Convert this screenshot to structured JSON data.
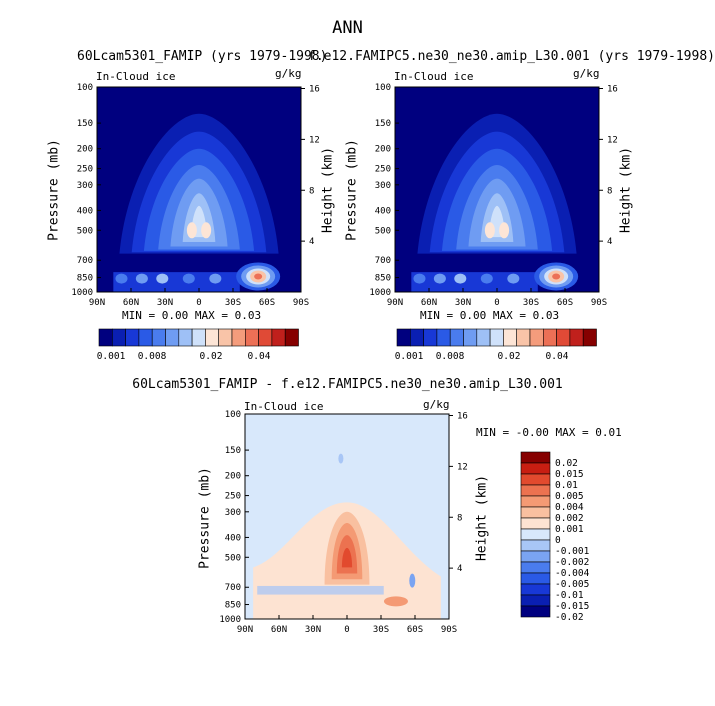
{
  "figure_title": "ANN",
  "panels": [
    {
      "title": "60Lcam5301_FAMIP (yrs 1979-1998)",
      "corner_left": "In-Cloud ice",
      "corner_right": "g/kg",
      "ylabel": "Pressure (mb)",
      "ylabel_right": "Height (km)",
      "minmax": "MIN =   0.00   MAX =   0.03"
    },
    {
      "title": "f.e12.FAMIPC5.ne30_ne30.amip_L30.001 (yrs 1979-1998)",
      "corner_left": "In-Cloud ice",
      "corner_right": "g/kg",
      "ylabel": "Pressure (mb)",
      "ylabel_right": "Height (km)",
      "minmax": "MIN =   0.00   MAX =   0.03"
    },
    {
      "title": "60Lcam5301_FAMIP - f.e12.FAMIPC5.ne30_ne30.amip_L30.001",
      "corner_left": "In-Cloud ice",
      "corner_right": "g/kg",
      "ylabel": "Pressure (mb)",
      "ylabel_right": "Height (km)",
      "minmax": "MIN =  -0.00   MAX =   0.01"
    }
  ],
  "colors": {
    "background_field": "#000080",
    "diff_background": "#d8e8fb",
    "colorbar_model": [
      "#00007f",
      "#0a1fb2",
      "#1838d6",
      "#2a5ae6",
      "#4a7cee",
      "#6f9cf2",
      "#9ec0f6",
      "#cfe1fa",
      "#fde5d6",
      "#f9c4a8",
      "#f49c7c",
      "#ec7056",
      "#e04a36",
      "#c0201c",
      "#860000"
    ],
    "colorbar_diff": [
      "#00007f",
      "#0a1fb2",
      "#1838d6",
      "#2a5ae6",
      "#4a7cee",
      "#7aa4f2",
      "#a8c6f6",
      "#d8e8fb",
      "#fde3d2",
      "#f9c0a0",
      "#f49a74",
      "#ec7250",
      "#e24a2e",
      "#c81e12",
      "#860000"
    ]
  },
  "chart_data": [
    {
      "type": "heatmap",
      "title": "60Lcam5301_FAMIP (yrs 1979-1998)",
      "variable": "In-Cloud ice",
      "units": "g/kg",
      "xlabel": "",
      "ylabel": "Pressure (mb)",
      "ylabel_right": "Height (km)",
      "x_ticks": [
        "90N",
        "60N",
        "30N",
        "0",
        "30S",
        "60S",
        "90S"
      ],
      "y_ticks": [
        100,
        150,
        200,
        250,
        300,
        400,
        500,
        700,
        850,
        1000
      ],
      "y_right_ticks": [
        4,
        8,
        12,
        16
      ],
      "ylim": [
        1000,
        100
      ],
      "y_scale": "log",
      "min": 0.0,
      "max": 0.03,
      "colorbar_labels": [
        "0.001",
        "0.008",
        "0.02",
        "0.04"
      ]
    },
    {
      "type": "heatmap",
      "title": "f.e12.FAMIPC5.ne30_ne30.amip_L30.001 (yrs 1979-1998)",
      "variable": "In-Cloud ice",
      "units": "g/kg",
      "xlabel": "",
      "ylabel": "Pressure (mb)",
      "ylabel_right": "Height (km)",
      "x_ticks": [
        "90N",
        "60N",
        "30N",
        "0",
        "30S",
        "60S",
        "90S"
      ],
      "y_ticks": [
        100,
        150,
        200,
        250,
        300,
        400,
        500,
        700,
        850,
        1000
      ],
      "y_right_ticks": [
        4,
        8,
        12,
        16
      ],
      "ylim": [
        1000,
        100
      ],
      "y_scale": "log",
      "min": 0.0,
      "max": 0.03,
      "colorbar_labels": [
        "0.001",
        "0.008",
        "0.02",
        "0.04"
      ]
    },
    {
      "type": "heatmap",
      "title": "60Lcam5301_FAMIP - f.e12.FAMIPC5.ne30_ne30.amip_L30.001",
      "variable": "In-Cloud ice",
      "units": "g/kg",
      "xlabel": "",
      "ylabel": "Pressure (mb)",
      "ylabel_right": "Height (km)",
      "x_ticks": [
        "90N",
        "60N",
        "30N",
        "0",
        "30S",
        "60S",
        "90S"
      ],
      "y_ticks": [
        100,
        150,
        200,
        250,
        300,
        400,
        500,
        700,
        850,
        1000
      ],
      "y_right_ticks": [
        4,
        8,
        12,
        16
      ],
      "ylim": [
        1000,
        100
      ],
      "y_scale": "log",
      "min": -0.0,
      "max": 0.01,
      "colorbar_labels": [
        "0.02",
        "0.015",
        "0.01",
        "0.005",
        "0.004",
        "0.002",
        "0.001",
        "0",
        "-0.001",
        "-0.002",
        "-0.004",
        "-0.005",
        "-0.01",
        "-0.015",
        "-0.02"
      ]
    }
  ]
}
